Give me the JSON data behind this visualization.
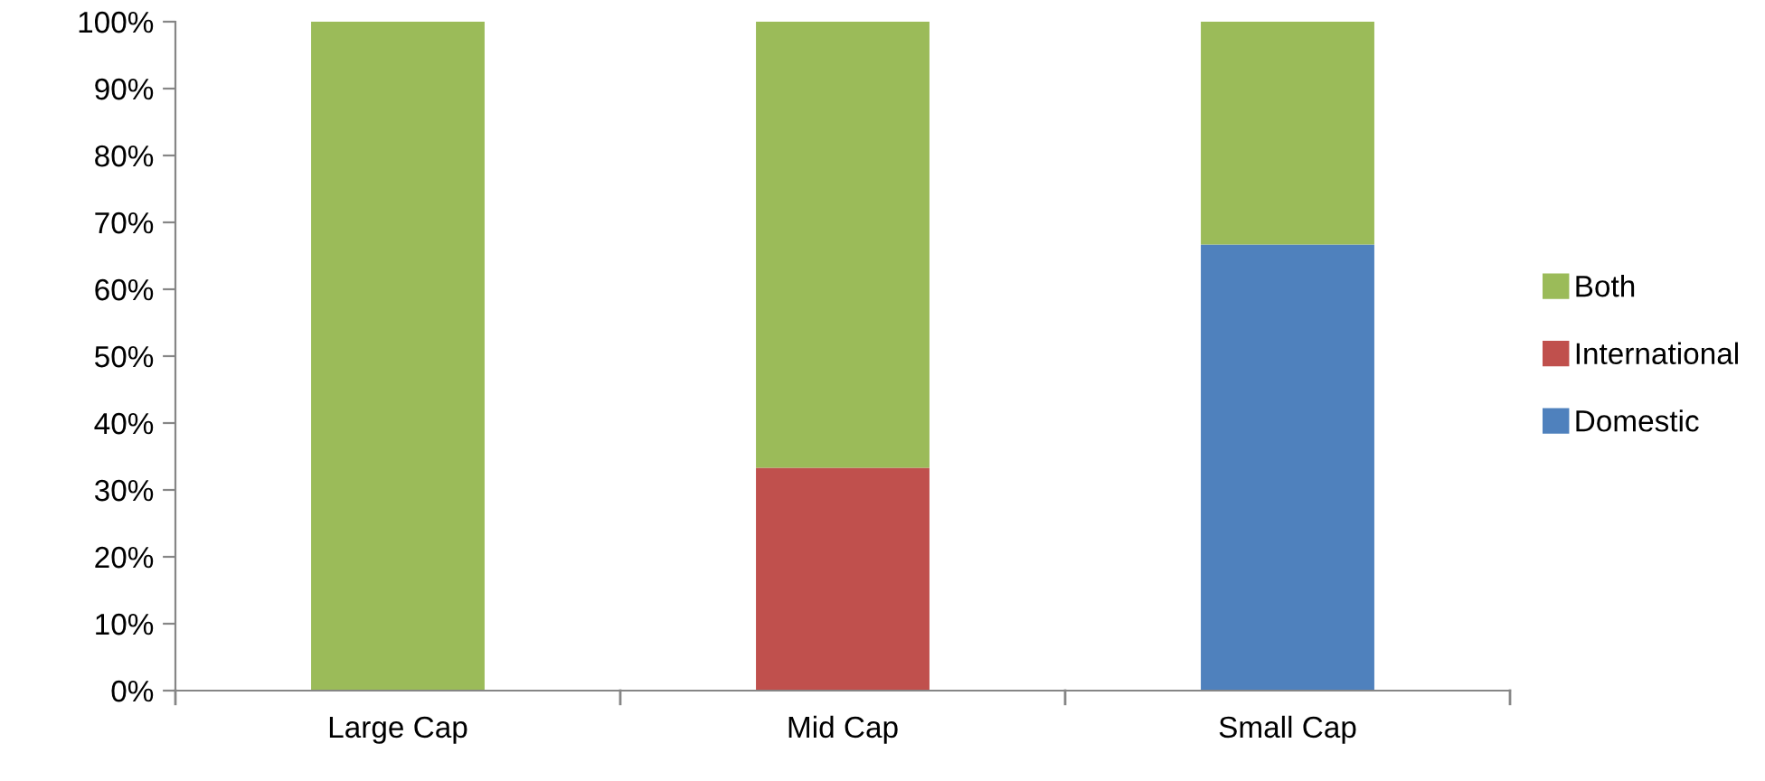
{
  "chart_data": {
    "type": "bar",
    "stacked": true,
    "categories": [
      "Large Cap",
      "Mid Cap",
      "Small Cap"
    ],
    "series": [
      {
        "name": "Domestic",
        "color": "#4f81bd",
        "values": [
          0,
          0,
          66.7
        ]
      },
      {
        "name": "International",
        "color": "#c0504d",
        "values": [
          0,
          33.3,
          0
        ]
      },
      {
        "name": "Both",
        "color": "#9bbb59",
        "values": [
          100,
          66.7,
          33.3
        ]
      }
    ],
    "ylim": [
      0,
      100
    ],
    "yticks": [
      {
        "value": 0,
        "label": "0%"
      },
      {
        "value": 10,
        "label": "10%"
      },
      {
        "value": 20,
        "label": "20%"
      },
      {
        "value": 30,
        "label": "30%"
      },
      {
        "value": 40,
        "label": "40%"
      },
      {
        "value": 50,
        "label": "50%"
      },
      {
        "value": 60,
        "label": "60%"
      },
      {
        "value": 70,
        "label": "70%"
      },
      {
        "value": 80,
        "label": "80%"
      },
      {
        "value": 90,
        "label": "90%"
      },
      {
        "value": 100,
        "label": "100%"
      }
    ],
    "grid": false,
    "legend": "right"
  }
}
